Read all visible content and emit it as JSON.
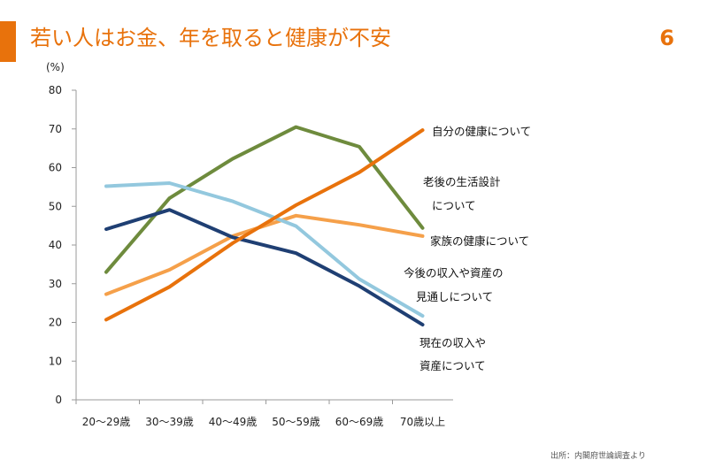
{
  "header": {
    "title": "若い人はお金、年を取ると健康が不安",
    "page_number": "6",
    "accent_color": "#E8720C"
  },
  "source": "出所：内閣府世論調査より",
  "chart_data": {
    "type": "line",
    "unit_label": "(%)",
    "categories": [
      "20〜29歳",
      "30〜39歳",
      "40〜49歳",
      "50〜59歳",
      "60〜69歳",
      "70歳以上"
    ],
    "ylim": [
      0,
      80
    ],
    "yticks": [
      0,
      10,
      20,
      30,
      40,
      50,
      60,
      70,
      80
    ],
    "grid": false,
    "series": [
      {
        "name_lines": [
          "自分の健康について"
        ],
        "color": "#E8720C",
        "values": [
          20.7,
          29.2,
          40.5,
          50.3,
          58.8,
          69.7
        ]
      },
      {
        "name_lines": [
          "老後の生活設計",
          "について"
        ],
        "color": "#6E8B3D",
        "values": [
          33.0,
          52.1,
          62.3,
          70.5,
          65.4,
          44.4
        ]
      },
      {
        "name_lines": [
          "家族の健康について"
        ],
        "color": "#F5A04A",
        "values": [
          27.3,
          33.6,
          42.3,
          47.6,
          45.2,
          42.3
        ]
      },
      {
        "name_lines": [
          "今後の収入や資産の",
          "見通しについて"
        ],
        "color": "#93C8DE",
        "values": [
          55.2,
          56.0,
          51.3,
          44.9,
          31.2,
          21.7
        ]
      },
      {
        "name_lines": [
          "現在の収入や",
          "資産について"
        ],
        "color": "#1F3F73",
        "values": [
          44.1,
          49.1,
          42.0,
          37.9,
          29.4,
          19.4
        ]
      }
    ]
  }
}
